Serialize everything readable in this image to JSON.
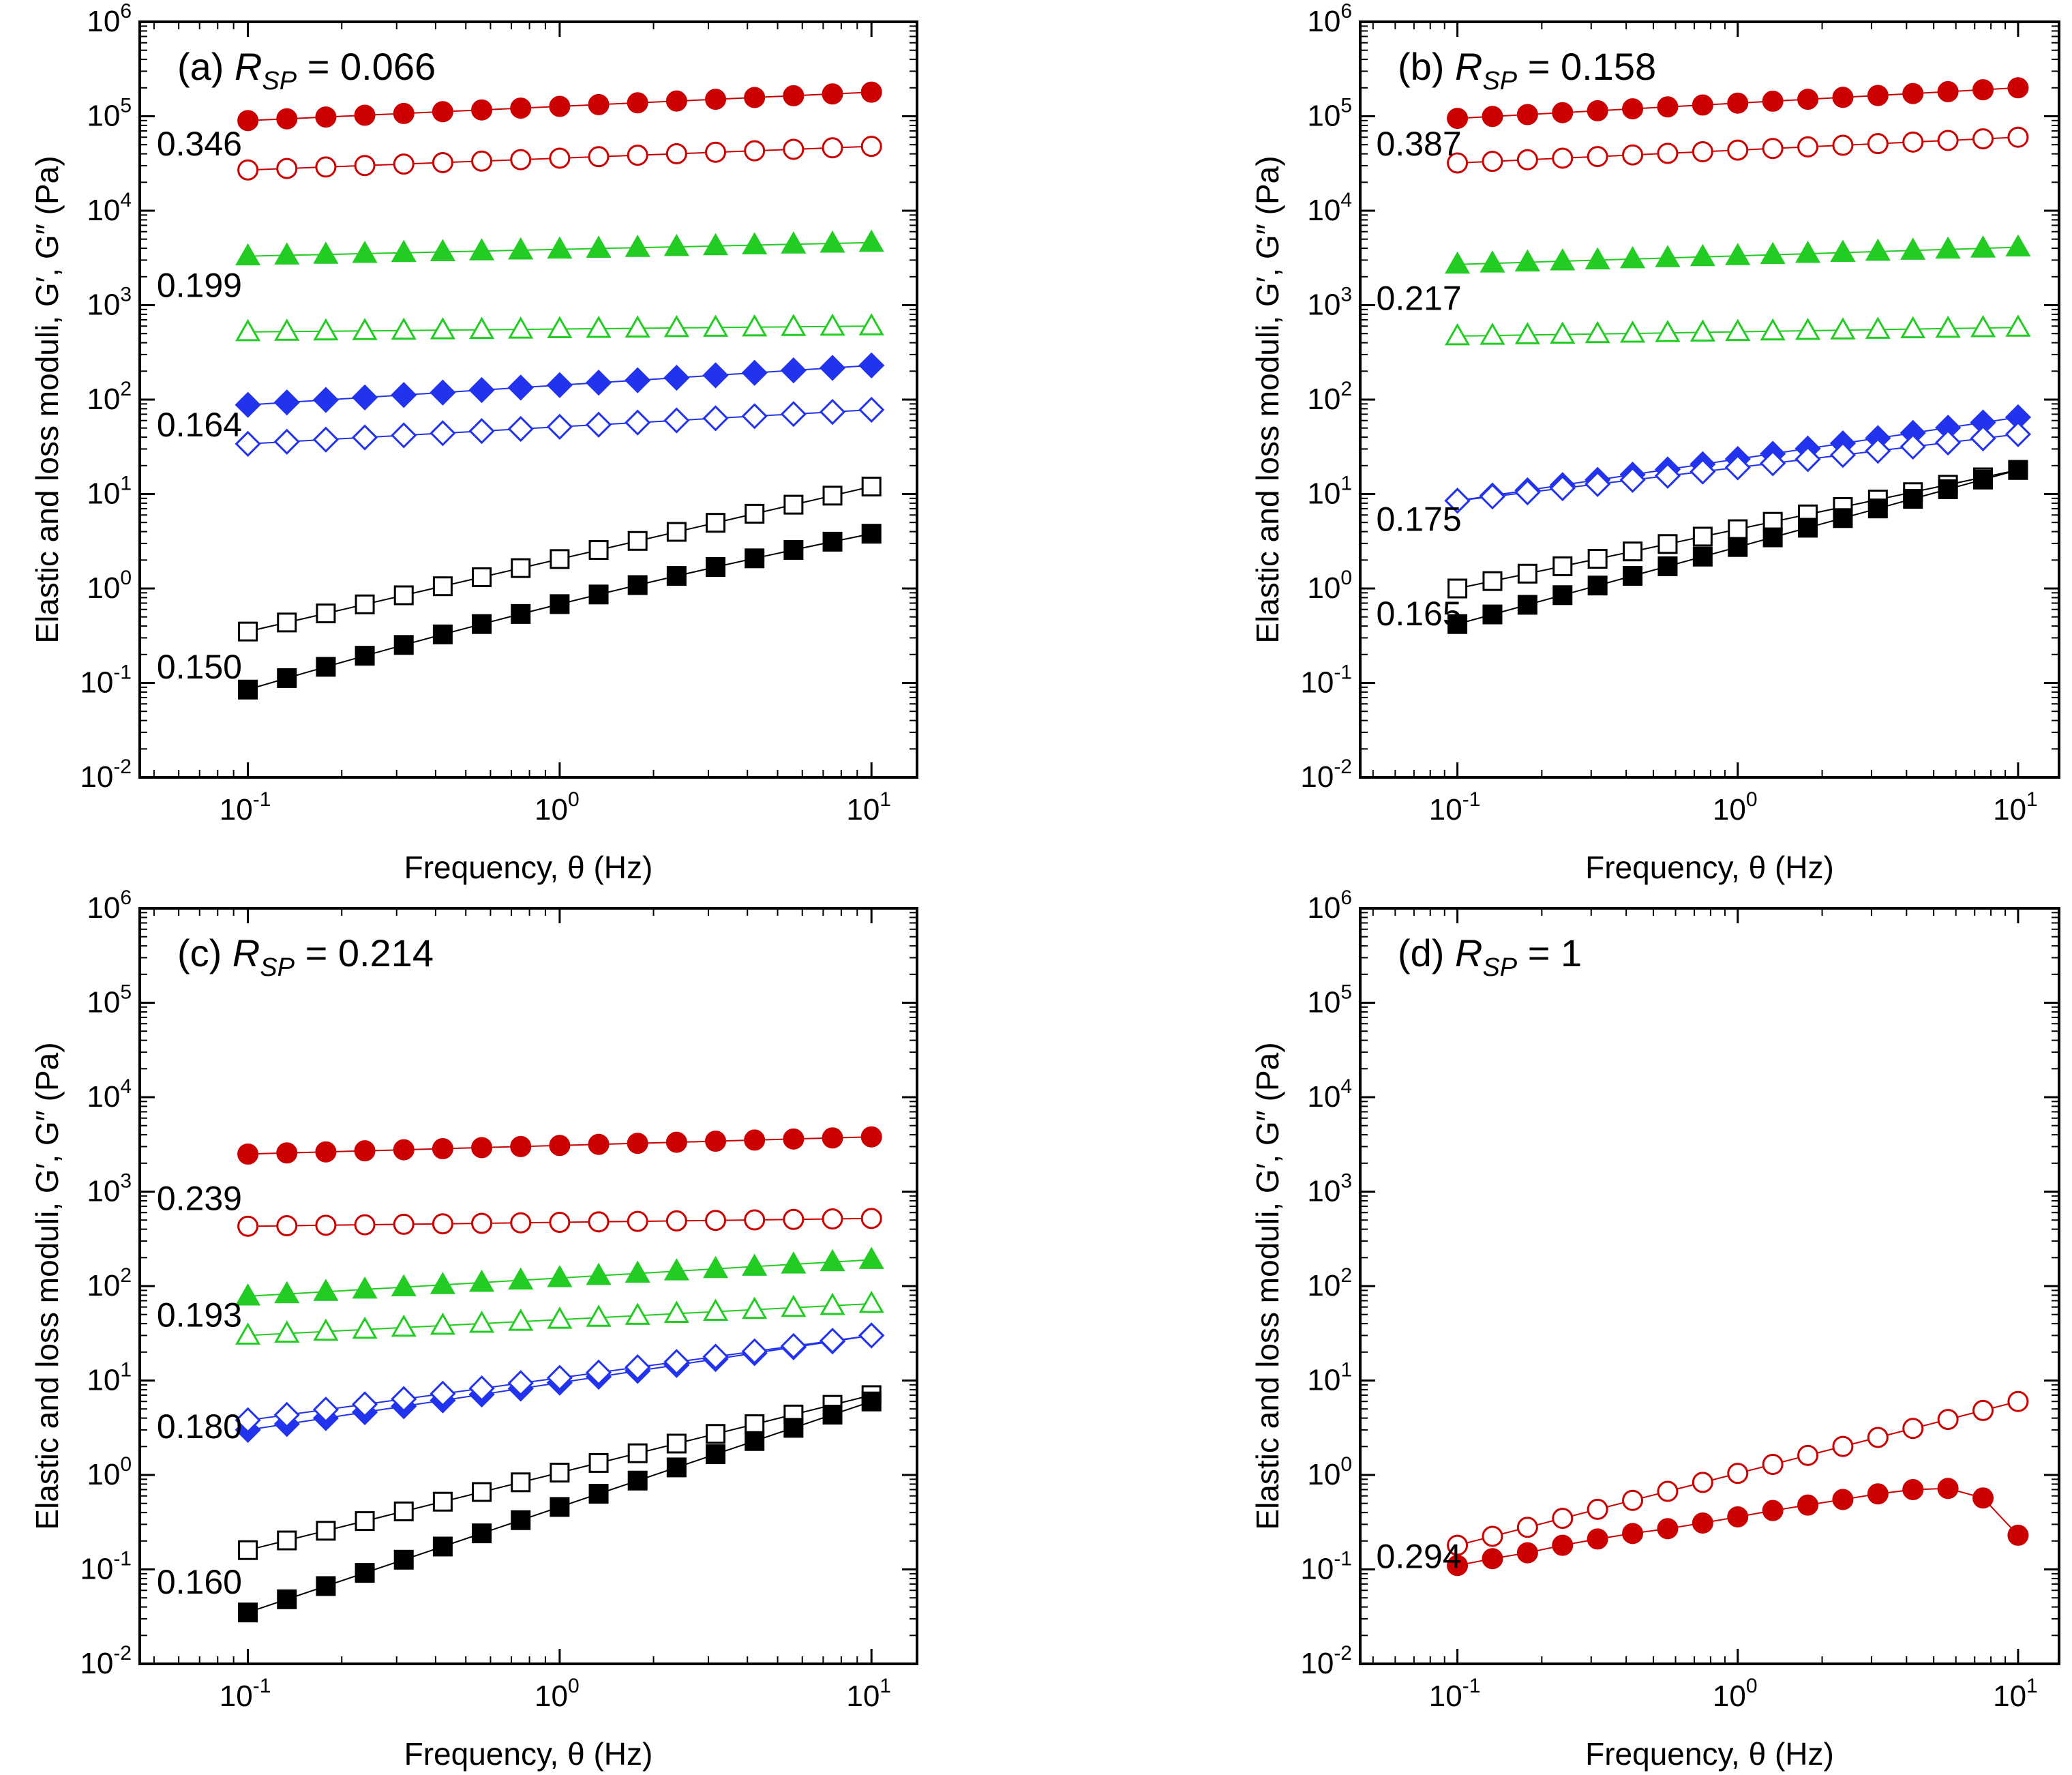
{
  "chart_data": [
    {
      "type": "scatter",
      "panel": "a",
      "title_prefix": "(a) ",
      "title_var": "R",
      "title_sub": "SP",
      "title_value": " = 0.066",
      "xlabel": "Frequency, θ (Hz)",
      "ylabel": "Elastic and loss moduli, G′, G″ (Pa)",
      "xscale": "log",
      "yscale": "log",
      "xlim": [
        0.045,
        14
      ],
      "ylim": [
        0.01,
        1000000
      ],
      "x_ticks": [
        "10-1",
        "100",
        "101"
      ],
      "y_ticks": [
        "10-2",
        "10-1",
        "100",
        "101",
        "102",
        "103",
        "104",
        "105",
        "106"
      ],
      "annotations": [
        {
          "text": "0.346",
          "x": 0.048,
          "y": 52000
        },
        {
          "text": "0.199",
          "x": 0.048,
          "y": 1650
        },
        {
          "text": "0.164",
          "x": 0.048,
          "y": 55
        },
        {
          "text": "0.150",
          "x": 0.048,
          "y": 0.15
        }
      ],
      "series": [
        {
          "name": "G′ 0.346",
          "marker": "circle",
          "filled": true,
          "color": "#cc0000",
          "ystart": 90000,
          "yend": 180000
        },
        {
          "name": "G″ 0.346",
          "marker": "circle",
          "filled": false,
          "color": "#cc0000",
          "ystart": 27000,
          "yend": 48000
        },
        {
          "name": "G′ 0.199",
          "marker": "triangle",
          "filled": true,
          "color": "#22cc22",
          "ystart": 3300,
          "yend": 4600
        },
        {
          "name": "G″ 0.199",
          "marker": "triangle",
          "filled": false,
          "color": "#22cc22",
          "ystart": 520,
          "yend": 600
        },
        {
          "name": "G′ 0.164",
          "marker": "diamond",
          "filled": true,
          "color": "#2233ee",
          "ystart": 88,
          "yend": 230
        },
        {
          "name": "G″ 0.164",
          "marker": "diamond",
          "filled": false,
          "color": "#2233ee",
          "ystart": 34,
          "yend": 78
        },
        {
          "name": "G″ 0.150",
          "marker": "square",
          "filled": false,
          "color": "#000000",
          "ystart": 0.35,
          "yend": 12
        },
        {
          "name": "G′ 0.150",
          "marker": "square",
          "filled": true,
          "color": "#000000",
          "ystart": 0.085,
          "yend": 3.8,
          "curve": -0.08
        }
      ]
    },
    {
      "type": "scatter",
      "panel": "b",
      "title_prefix": "(b) ",
      "title_var": "R",
      "title_sub": "SP",
      "title_value": " = 0.158",
      "xlabel": "Frequency, θ (Hz)",
      "ylabel": "Elastic and loss moduli, G′, G″ (Pa)",
      "xscale": "log",
      "yscale": "log",
      "xlim": [
        0.045,
        14
      ],
      "ylim": [
        0.01,
        1000000
      ],
      "x_ticks": [
        "10-1",
        "100",
        "101"
      ],
      "y_ticks": [
        "10-2",
        "10-1",
        "100",
        "101",
        "102",
        "103",
        "104",
        "105",
        "106"
      ],
      "annotations": [
        {
          "text": "0.387",
          "x": 0.048,
          "y": 52000
        },
        {
          "text": "0.217",
          "x": 0.048,
          "y": 1200
        },
        {
          "text": "0.175",
          "x": 0.048,
          "y": 5.5
        },
        {
          "text": "0.165",
          "x": 0.048,
          "y": 0.55
        }
      ],
      "series": [
        {
          "name": "G′ 0.387",
          "marker": "circle",
          "filled": true,
          "color": "#cc0000",
          "ystart": 95000,
          "yend": 200000
        },
        {
          "name": "G″ 0.387",
          "marker": "circle",
          "filled": false,
          "color": "#cc0000",
          "ystart": 32000,
          "yend": 60000
        },
        {
          "name": "G′ 0.217",
          "marker": "triangle",
          "filled": true,
          "color": "#22cc22",
          "ystart": 2700,
          "yend": 4100
        },
        {
          "name": "G″ 0.217",
          "marker": "triangle",
          "filled": false,
          "color": "#22cc22",
          "ystart": 470,
          "yend": 580
        },
        {
          "name": "G′ 0.175",
          "marker": "diamond",
          "filled": true,
          "color": "#2233ee",
          "ystart": 8.5,
          "yend": 65
        },
        {
          "name": "G″ 0.175",
          "marker": "diamond",
          "filled": false,
          "color": "#2233ee",
          "ystart": 8.5,
          "yend": 43
        },
        {
          "name": "G″ 0.165",
          "marker": "square",
          "filled": false,
          "color": "#000000",
          "ystart": 1.0,
          "yend": 18
        },
        {
          "name": "G′ 0.165",
          "marker": "square",
          "filled": true,
          "color": "#000000",
          "ystart": 0.42,
          "yend": 18
        }
      ]
    },
    {
      "type": "scatter",
      "panel": "c",
      "title_prefix": "(c) ",
      "title_var": "R",
      "title_sub": "SP",
      "title_value": " = 0.214",
      "xlabel": "Frequency, θ (Hz)",
      "ylabel": "Elastic and loss moduli, G′, G″ (Pa)",
      "xscale": "log",
      "yscale": "log",
      "xlim": [
        0.045,
        14
      ],
      "ylim": [
        0.01,
        1000000
      ],
      "x_ticks": [
        "10-1",
        "100",
        "101"
      ],
      "y_ticks": [
        "10-2",
        "10-1",
        "100",
        "101",
        "102",
        "103",
        "104",
        "105",
        "106"
      ],
      "annotations": [
        {
          "text": "0.239",
          "x": 0.048,
          "y": 860
        },
        {
          "text": "0.193",
          "x": 0.048,
          "y": 50
        },
        {
          "text": "0.180",
          "x": 0.048,
          "y": 3.3
        },
        {
          "text": "0.160",
          "x": 0.048,
          "y": 0.075
        }
      ],
      "series": [
        {
          "name": "G′ 0.239",
          "marker": "circle",
          "filled": true,
          "color": "#cc0000",
          "ystart": 2500,
          "yend": 3800
        },
        {
          "name": "G″ 0.239",
          "marker": "circle",
          "filled": false,
          "color": "#cc0000",
          "ystart": 430,
          "yend": 520
        },
        {
          "name": "G′ 0.193",
          "marker": "triangle",
          "filled": true,
          "color": "#22cc22",
          "ystart": 78,
          "yend": 190
        },
        {
          "name": "G″ 0.193",
          "marker": "triangle",
          "filled": false,
          "color": "#22cc22",
          "ystart": 30,
          "yend": 65
        },
        {
          "name": "G′ 0.180",
          "marker": "diamond",
          "filled": true,
          "color": "#2233ee",
          "ystart": 3.0,
          "yend": 30
        },
        {
          "name": "G″ 0.180",
          "marker": "diamond",
          "filled": false,
          "color": "#2233ee",
          "ystart": 3.8,
          "yend": 30
        },
        {
          "name": "G″ 0.160",
          "marker": "square",
          "filled": false,
          "color": "#000000",
          "ystart": 0.16,
          "yend": 7
        },
        {
          "name": "G′ 0.160",
          "marker": "square",
          "filled": true,
          "color": "#000000",
          "ystart": 0.035,
          "yend": 6
        }
      ]
    },
    {
      "type": "scatter",
      "panel": "d",
      "title_prefix": "(d) ",
      "title_var": "R",
      "title_sub": "SP",
      "title_value": " = 1",
      "xlabel": "Frequency, θ (Hz)",
      "ylabel": "Elastic and loss moduli, G′, G″ (Pa)",
      "xscale": "log",
      "yscale": "log",
      "xlim": [
        0.045,
        14
      ],
      "ylim": [
        0.01,
        1000000
      ],
      "x_ticks": [
        "10-1",
        "100",
        "101"
      ],
      "y_ticks": [
        "10-2",
        "10-1",
        "100",
        "101",
        "102",
        "103",
        "104",
        "105",
        "106"
      ],
      "annotations": [
        {
          "text": "0.294",
          "x": 0.048,
          "y": 0.14
        }
      ],
      "series": [
        {
          "name": "G″ 0.294",
          "marker": "circle",
          "filled": false,
          "color": "#cc0000",
          "ystart": 0.18,
          "yend": 6
        },
        {
          "name": "G′ 0.294",
          "marker": "circle",
          "filled": true,
          "color": "#cc0000",
          "values": [
            0.11,
            0.13,
            0.15,
            0.18,
            0.21,
            0.24,
            0.27,
            0.31,
            0.36,
            0.42,
            0.48,
            0.55,
            0.63,
            0.7,
            0.72,
            0.57,
            0.23
          ]
        }
      ]
    }
  ]
}
